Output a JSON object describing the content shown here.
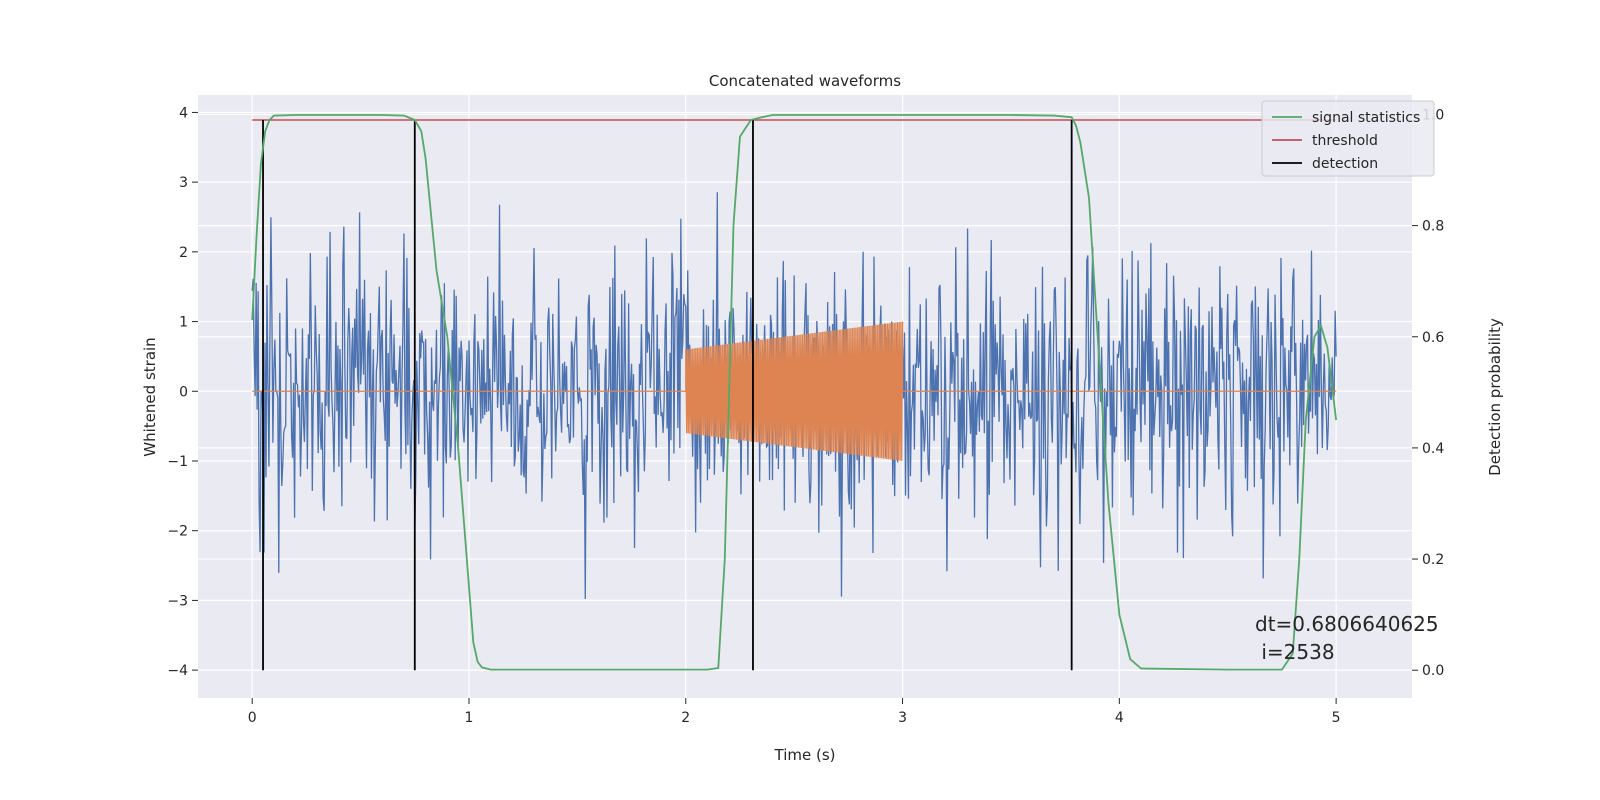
{
  "chart_data": {
    "type": "line",
    "title": "Concatenated waveforms",
    "xlabel": "Time (s)",
    "ylabel": "Whitened strain",
    "ylabel_right": "Detection probability",
    "xlim": [
      -0.25,
      5.35
    ],
    "ylim": [
      -4.4,
      4.25
    ],
    "ylim_right": [
      -0.05,
      1.035
    ],
    "x_ticks": [
      0,
      1,
      2,
      3,
      4,
      5
    ],
    "y_ticks": [
      -4,
      -3,
      -2,
      -1,
      0,
      1,
      2,
      3,
      4
    ],
    "y_ticks_right": [
      0.0,
      0.2,
      0.4,
      0.6,
      0.8,
      1.0
    ],
    "x_tick_labels": [
      "0",
      "1",
      "2",
      "3",
      "4",
      "5"
    ],
    "y_tick_labels": [
      "−4",
      "−3",
      "−2",
      "−1",
      "0",
      "1",
      "2",
      "3",
      "4"
    ],
    "y_tick_labels_right": [
      "0.0",
      "0.2",
      "0.4",
      "0.6",
      "0.8",
      "1.0"
    ],
    "grid": true,
    "background": "#EAEAF2",
    "legend_position": "top-right",
    "series": [
      {
        "name": "",
        "axis": "left",
        "color": "#4C72B0",
        "kind": "noise",
        "x_range": [
          0,
          5
        ],
        "std": 0.95,
        "min": -4.1,
        "max": 3.85
      },
      {
        "name": "",
        "axis": "left",
        "color": "#DD8452",
        "kind": "chirp",
        "x_range": [
          0,
          5
        ],
        "chirp_x_range": [
          2.0,
          3.0
        ],
        "chirp_amplitude_range": [
          0.6,
          1.0
        ]
      },
      {
        "name": "signal statistics",
        "axis": "right",
        "color": "#55A868",
        "x": [
          0.0,
          0.02,
          0.04,
          0.06,
          0.08,
          0.1,
          0.2,
          0.4,
          0.6,
          0.7,
          0.75,
          0.78,
          0.8,
          0.82,
          0.85,
          0.9,
          0.95,
          1.0,
          1.02,
          1.04,
          1.06,
          1.1,
          1.5,
          2.0,
          2.1,
          2.15,
          2.18,
          2.2,
          2.22,
          2.25,
          2.3,
          2.35,
          2.4,
          3.0,
          3.5,
          3.7,
          3.78,
          3.8,
          3.82,
          3.86,
          3.9,
          3.95,
          4.0,
          4.05,
          4.1,
          4.5,
          4.75,
          4.8,
          4.83,
          4.86,
          4.9,
          4.93,
          4.96,
          5.0
        ],
        "values": [
          0.63,
          0.78,
          0.91,
          0.97,
          0.99,
          0.998,
          0.999,
          0.999,
          0.999,
          0.998,
          0.99,
          0.97,
          0.92,
          0.84,
          0.72,
          0.6,
          0.4,
          0.15,
          0.05,
          0.015,
          0.005,
          0.001,
          0.001,
          0.001,
          0.001,
          0.004,
          0.2,
          0.5,
          0.8,
          0.96,
          0.99,
          0.995,
          0.999,
          0.999,
          0.999,
          0.998,
          0.995,
          0.98,
          0.95,
          0.85,
          0.6,
          0.3,
          0.1,
          0.02,
          0.003,
          0.001,
          0.001,
          0.03,
          0.2,
          0.45,
          0.6,
          0.62,
          0.58,
          0.45
        ]
      },
      {
        "name": "threshold",
        "axis": "right",
        "color": "#C44E52",
        "x": [
          0,
          5
        ],
        "values": [
          0.99,
          0.99
        ]
      },
      {
        "name": "detection",
        "axis": "right",
        "color": "#000000",
        "kind": "vlines",
        "x": [
          0.05,
          0.75,
          2.31,
          3.78
        ],
        "y_range": [
          0.0,
          0.99
        ]
      }
    ],
    "annotation": {
      "line1": "dt=0.6806640625",
      "line2": " i=2538"
    }
  }
}
